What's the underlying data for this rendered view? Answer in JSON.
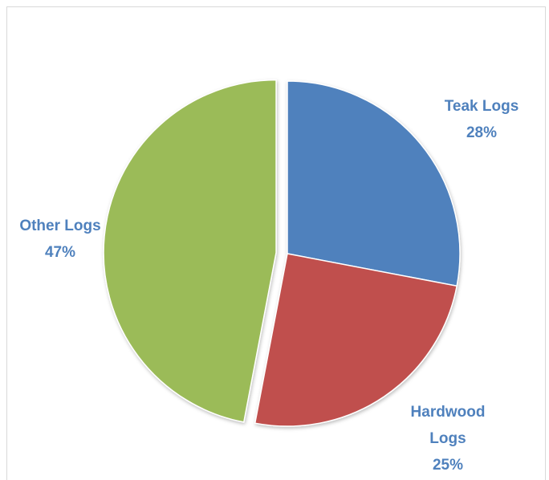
{
  "chart_data": {
    "type": "pie",
    "title": "",
    "start_angle_deg": 0,
    "direction": "clockwise",
    "slices": [
      {
        "name": "Teak Logs",
        "value": 28,
        "label_name": "Teak Logs",
        "label_value": "28%",
        "color": "#4f81bd",
        "label_color": "#4f81bd",
        "exploded": false
      },
      {
        "name": "Hardwood Logs",
        "value": 25,
        "label_name": "Hardwood Logs",
        "label_value": "25%",
        "color": "#c0504d",
        "label_color": "#4f81bd",
        "exploded": false
      },
      {
        "name": "Other Logs",
        "value": 47,
        "label_name": "Other Logs",
        "label_value": "47%",
        "color": "#9bbb59",
        "label_color": "#4f81bd",
        "exploded": true
      }
    ],
    "legend": "none"
  }
}
